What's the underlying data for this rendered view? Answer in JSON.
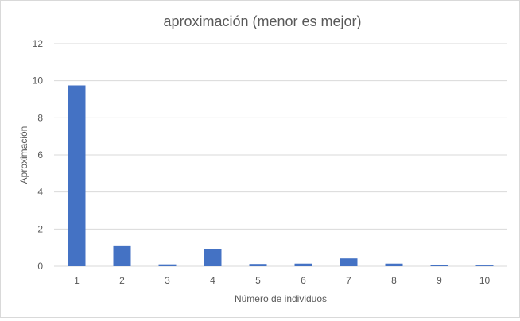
{
  "chart_data": {
    "type": "bar",
    "title": "aproximación (menor es mejor)",
    "xlabel": "Número de individuos",
    "ylabel": "Aproximación",
    "categories": [
      "1",
      "2",
      "3",
      "4",
      "5",
      "6",
      "7",
      "8",
      "9",
      "10"
    ],
    "series": [
      {
        "values": [
          9.75,
          1.12,
          0.1,
          0.92,
          0.12,
          0.14,
          0.42,
          0.14,
          0.06,
          0.04
        ]
      }
    ],
    "yticks": [
      "0",
      "2",
      "4",
      "6",
      "8",
      "10",
      "12"
    ],
    "ylim": [
      0,
      12
    ],
    "grid": true,
    "legend": "none",
    "bar_color": "#4472c4"
  }
}
